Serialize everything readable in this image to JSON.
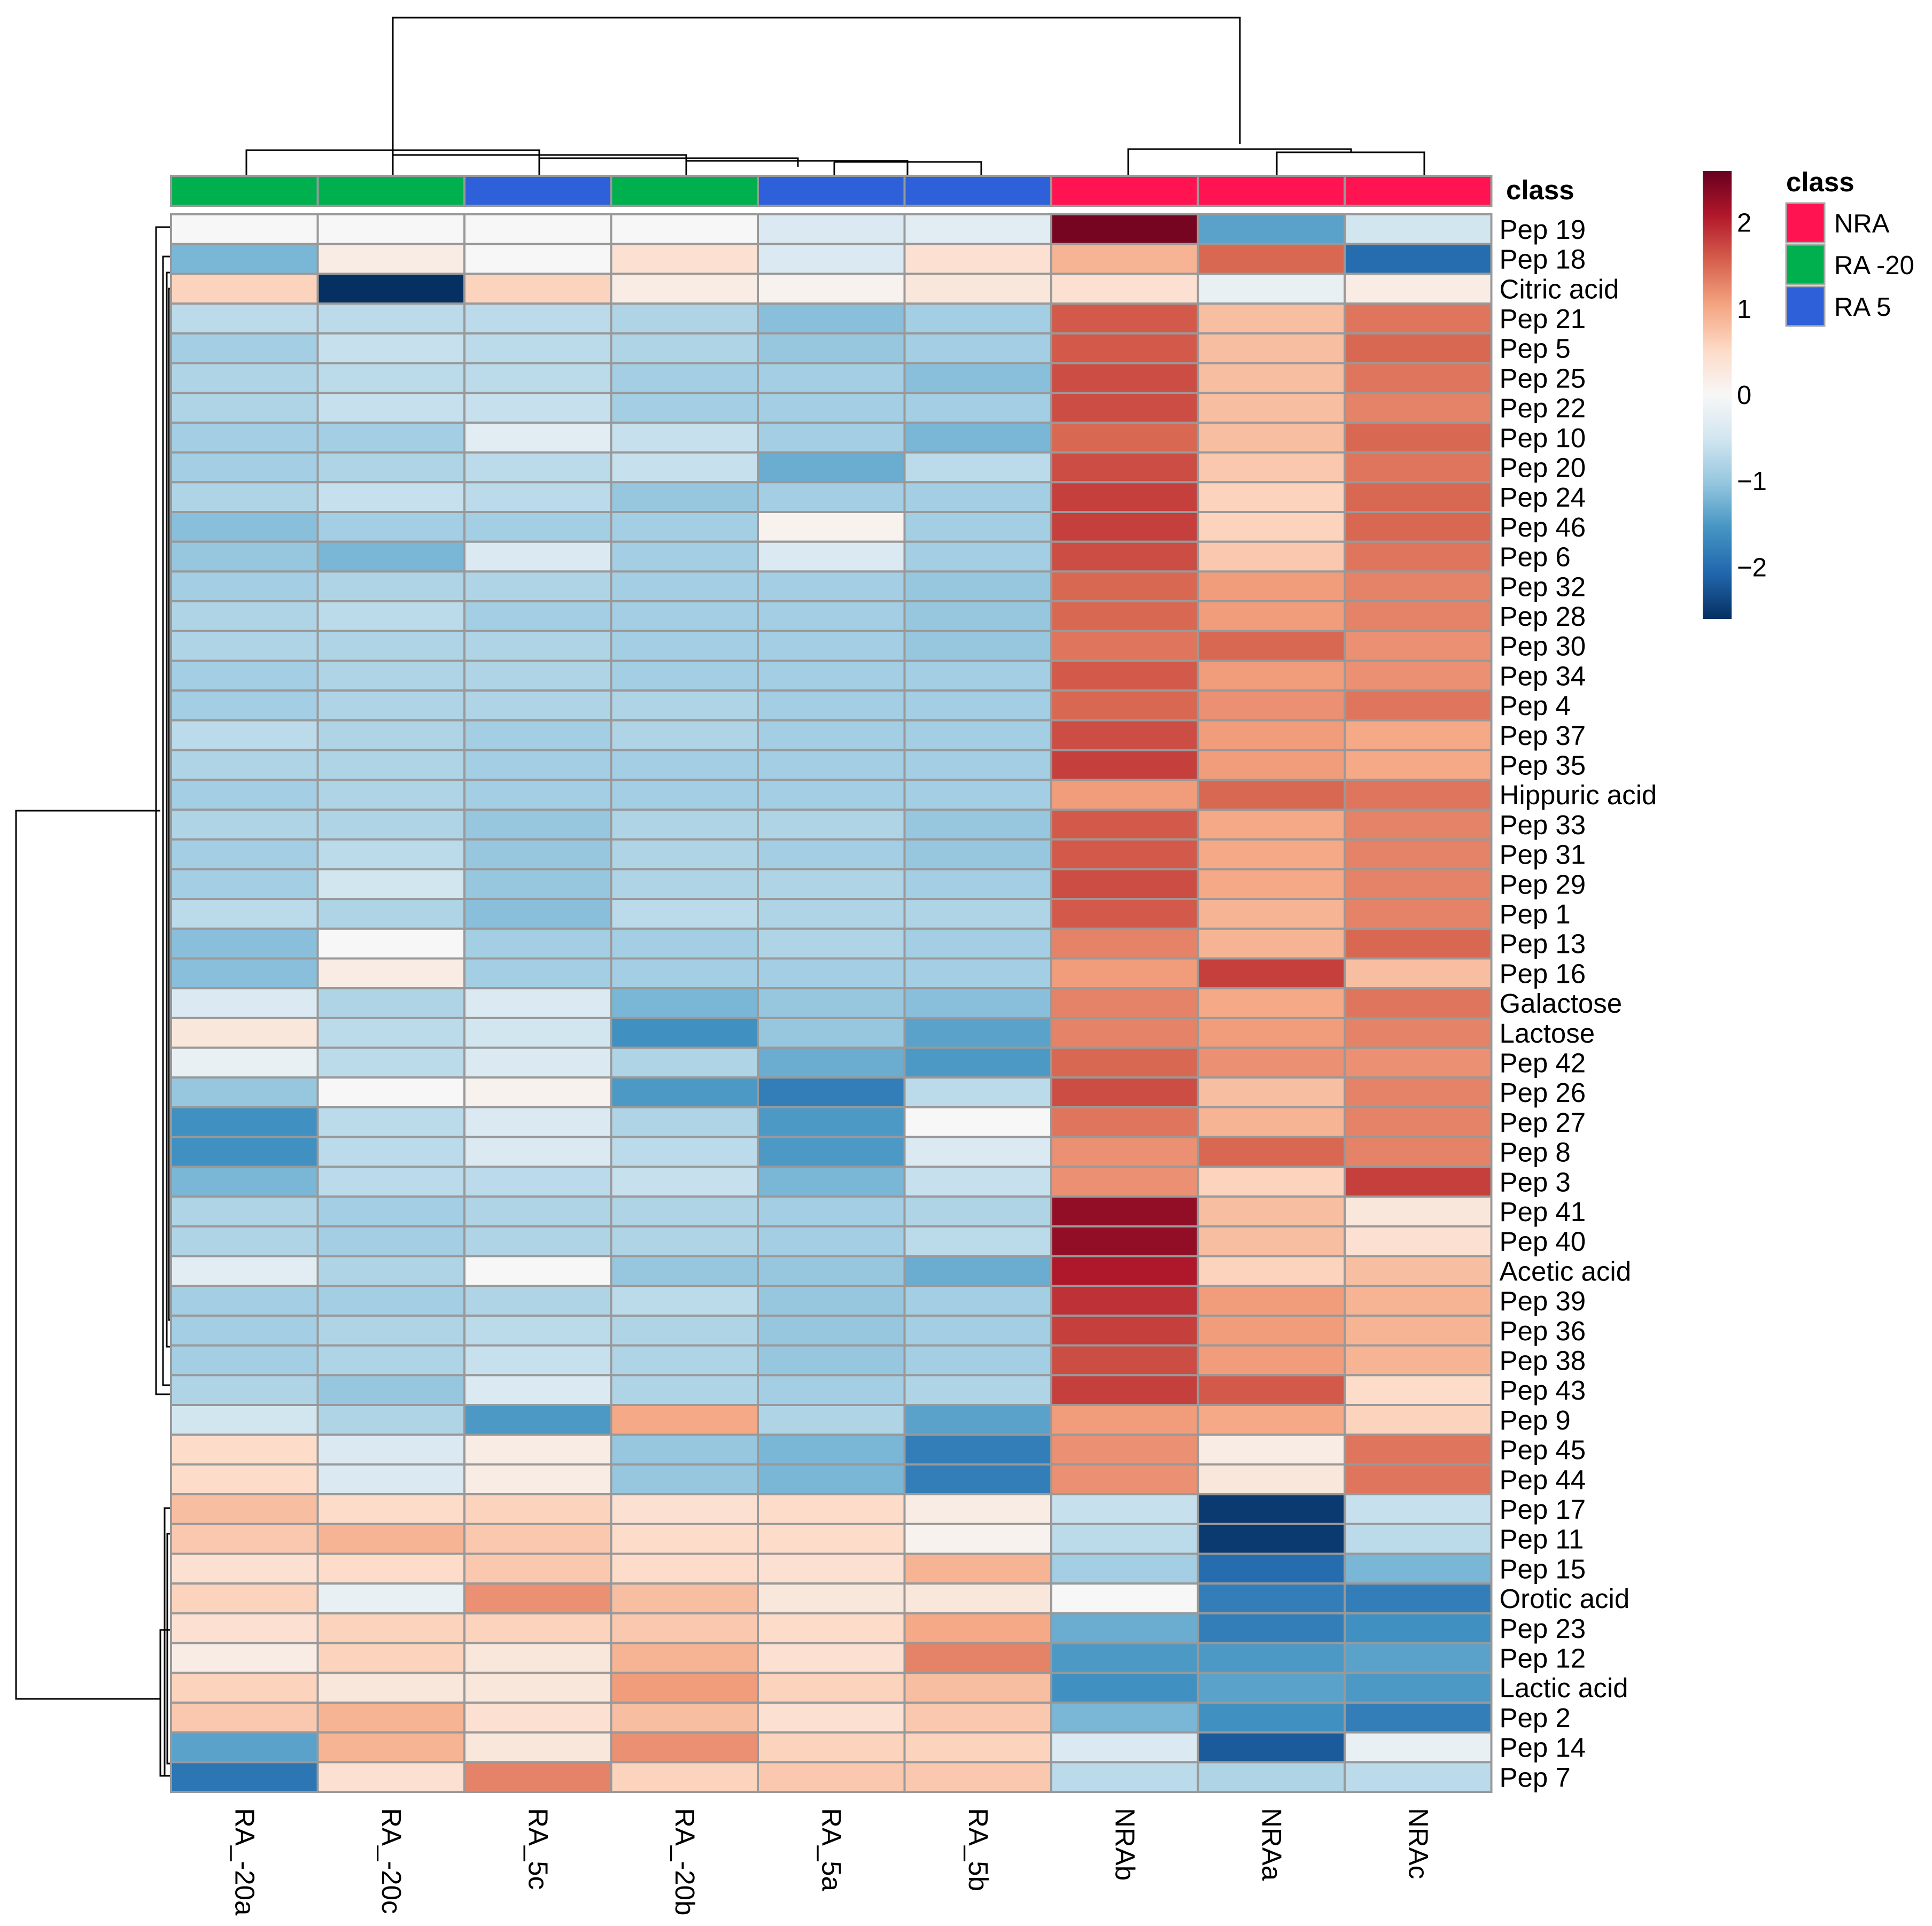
{
  "chart_data": {
    "type": "heatmap",
    "title": "",
    "columns": [
      "RA_-20a",
      "RA_-20c",
      "RA_5c",
      "RA_-20b",
      "RA_5a",
      "RA_5b",
      "NRAb",
      "NRAa",
      "NRAc"
    ],
    "column_class": [
      "RA -20",
      "RA -20",
      "RA 5",
      "RA -20",
      "RA 5",
      "RA 5",
      "NRA",
      "NRA",
      "NRA"
    ],
    "rows": [
      "Pep 19",
      "Pep 18",
      "Citric acid",
      "Pep 21",
      "Pep 5",
      "Pep 25",
      "Pep 22",
      "Pep 10",
      "Pep 20",
      "Pep 24",
      "Pep 46",
      "Pep 6",
      "Pep 32",
      "Pep 28",
      "Pep 30",
      "Pep 34",
      "Pep 4",
      "Pep 37",
      "Pep 35",
      "Hippuric acid",
      "Pep 33",
      "Pep 31",
      "Pep 29",
      "Pep 1",
      "Pep 13",
      "Pep 16",
      "Galactose",
      "Lactose",
      "Pep 42",
      "Pep 26",
      "Pep 27",
      "Pep 8",
      "Pep 3",
      "Pep 41",
      "Pep 40",
      "Acetic acid",
      "Pep 39",
      "Pep 36",
      "Pep 38",
      "Pep 43",
      "Pep 9",
      "Pep 45",
      "Pep 44",
      "Pep 17",
      "Pep 11",
      "Pep 15",
      "Orotic acid",
      "Pep 23",
      "Pep 12",
      "Lactic acid",
      "Pep 2",
      "Pep 14",
      "Pep 7"
    ],
    "values": [
      [
        0.0,
        0.0,
        0.0,
        0.0,
        -0.4,
        -0.3,
        2.5,
        -1.4,
        -0.5
      ],
      [
        -1.2,
        0.2,
        0.0,
        0.4,
        -0.4,
        0.4,
        0.9,
        1.5,
        -2.0
      ],
      [
        0.6,
        -2.6,
        0.6,
        0.2,
        0.1,
        0.3,
        0.4,
        -0.2,
        0.2
      ],
      [
        -0.7,
        -0.7,
        -0.7,
        -0.8,
        -1.1,
        -0.9,
        1.6,
        0.8,
        1.4
      ],
      [
        -0.9,
        -0.6,
        -0.7,
        -0.8,
        -1.0,
        -0.9,
        1.6,
        0.8,
        1.5
      ],
      [
        -0.8,
        -0.7,
        -0.7,
        -0.9,
        -0.9,
        -1.1,
        1.7,
        0.8,
        1.4
      ],
      [
        -0.8,
        -0.6,
        -0.6,
        -0.9,
        -0.9,
        -0.9,
        1.7,
        0.8,
        1.3
      ],
      [
        -0.9,
        -0.9,
        -0.3,
        -0.6,
        -0.9,
        -1.2,
        1.5,
        0.8,
        1.5
      ],
      [
        -0.9,
        -0.8,
        -0.7,
        -0.6,
        -1.3,
        -0.7,
        1.7,
        0.7,
        1.4
      ],
      [
        -0.8,
        -0.6,
        -0.7,
        -1.0,
        -0.9,
        -0.9,
        1.8,
        0.6,
        1.5
      ],
      [
        -1.1,
        -0.9,
        -0.9,
        -0.9,
        0.1,
        -0.9,
        1.8,
        0.6,
        1.5
      ],
      [
        -1.0,
        -1.2,
        -0.4,
        -0.9,
        -0.4,
        -0.9,
        1.7,
        0.7,
        1.4
      ],
      [
        -0.9,
        -0.8,
        -0.8,
        -0.9,
        -0.9,
        -1.0,
        1.5,
        1.1,
        1.3
      ],
      [
        -0.8,
        -0.7,
        -0.9,
        -0.9,
        -0.9,
        -1.0,
        1.5,
        1.1,
        1.3
      ],
      [
        -0.8,
        -0.8,
        -0.8,
        -0.9,
        -0.9,
        -1.0,
        1.4,
        1.5,
        1.2
      ],
      [
        -0.9,
        -0.8,
        -0.8,
        -0.9,
        -0.9,
        -0.9,
        1.6,
        1.1,
        1.2
      ],
      [
        -0.9,
        -0.8,
        -0.8,
        -0.8,
        -0.9,
        -0.9,
        1.5,
        1.2,
        1.4
      ],
      [
        -0.7,
        -0.8,
        -0.9,
        -0.8,
        -0.9,
        -0.9,
        1.7,
        1.1,
        1.0
      ],
      [
        -0.8,
        -0.8,
        -0.9,
        -0.9,
        -0.9,
        -0.9,
        1.8,
        1.1,
        1.0
      ],
      [
        -0.9,
        -0.8,
        -0.9,
        -0.9,
        -0.9,
        -0.9,
        1.1,
        1.5,
        1.4
      ],
      [
        -0.8,
        -0.8,
        -1.0,
        -0.8,
        -0.8,
        -1.0,
        1.6,
        1.0,
        1.3
      ],
      [
        -0.9,
        -0.7,
        -1.0,
        -0.8,
        -0.9,
        -1.0,
        1.6,
        1.0,
        1.3
      ],
      [
        -0.9,
        -0.5,
        -1.0,
        -0.8,
        -0.8,
        -0.9,
        1.7,
        1.0,
        1.3
      ],
      [
        -0.7,
        -0.8,
        -1.1,
        -0.7,
        -0.8,
        -0.8,
        1.6,
        0.9,
        1.3
      ],
      [
        -1.1,
        0.0,
        -0.9,
        -0.9,
        -0.8,
        -0.9,
        1.3,
        0.9,
        1.5
      ],
      [
        -1.1,
        0.2,
        -0.9,
        -0.9,
        -0.9,
        -0.9,
        1.1,
        1.8,
        0.8
      ],
      [
        -0.4,
        -0.8,
        -0.4,
        -1.2,
        -1.0,
        -1.1,
        1.3,
        1.0,
        1.4
      ],
      [
        0.3,
        -0.7,
        -0.5,
        -1.6,
        -1.0,
        -1.4,
        1.3,
        1.1,
        1.3
      ],
      [
        -0.2,
        -0.7,
        -0.4,
        -0.8,
        -1.3,
        -1.5,
        1.5,
        1.2,
        1.2
      ],
      [
        -1.0,
        0.0,
        0.1,
        -1.5,
        -1.8,
        -0.7,
        1.7,
        0.8,
        1.3
      ],
      [
        -1.6,
        -0.7,
        -0.4,
        -0.8,
        -1.5,
        0.0,
        1.4,
        0.9,
        1.3
      ],
      [
        -1.6,
        -0.7,
        -0.4,
        -0.7,
        -1.5,
        -0.4,
        1.2,
        1.5,
        1.3
      ],
      [
        -1.2,
        -0.7,
        -0.7,
        -0.6,
        -1.2,
        -0.6,
        1.2,
        0.6,
        1.8
      ],
      [
        -0.8,
        -0.9,
        -0.8,
        -0.8,
        -0.9,
        -0.8,
        2.3,
        0.8,
        0.3
      ],
      [
        -0.8,
        -0.9,
        -0.8,
        -0.8,
        -0.9,
        -0.7,
        2.3,
        0.8,
        0.4
      ],
      [
        -0.3,
        -0.8,
        0.0,
        -1.0,
        -1.0,
        -1.3,
        2.1,
        0.6,
        0.8
      ],
      [
        -0.9,
        -0.9,
        -0.8,
        -0.7,
        -1.0,
        -0.9,
        1.9,
        1.1,
        0.9
      ],
      [
        -0.9,
        -0.8,
        -0.7,
        -0.8,
        -1.0,
        -0.9,
        1.8,
        1.1,
        0.9
      ],
      [
        -0.9,
        -0.8,
        -0.6,
        -0.8,
        -1.0,
        -0.9,
        1.7,
        1.1,
        0.9
      ],
      [
        -0.8,
        -1.0,
        -0.4,
        -0.8,
        -0.9,
        -0.8,
        1.8,
        1.6,
        0.5
      ],
      [
        -0.5,
        -0.8,
        -1.5,
        1.0,
        -0.8,
        -1.4,
        1.1,
        1.0,
        0.6
      ],
      [
        0.5,
        -0.4,
        0.2,
        -1.0,
        -1.2,
        -1.8,
        1.2,
        0.2,
        1.4
      ],
      [
        0.5,
        -0.4,
        0.2,
        -1.0,
        -1.2,
        -1.8,
        1.2,
        0.3,
        1.4
      ],
      [
        0.8,
        0.5,
        0.6,
        0.4,
        0.5,
        0.2,
        -0.6,
        -2.5,
        -0.6
      ],
      [
        0.7,
        0.9,
        0.7,
        0.5,
        0.5,
        0.1,
        -0.7,
        -2.5,
        -0.7
      ],
      [
        0.4,
        0.5,
        0.7,
        0.5,
        0.4,
        0.9,
        -0.9,
        -2.0,
        -1.2
      ],
      [
        0.6,
        -0.2,
        1.2,
        0.8,
        0.3,
        0.3,
        0.0,
        -1.8,
        -1.8
      ],
      [
        0.4,
        0.6,
        0.6,
        0.7,
        0.5,
        1.0,
        -1.3,
        -1.8,
        -1.6
      ],
      [
        0.2,
        0.6,
        0.3,
        0.9,
        0.4,
        1.3,
        -1.5,
        -1.5,
        -1.4
      ],
      [
        0.6,
        0.3,
        0.3,
        1.1,
        0.6,
        0.8,
        -1.6,
        -1.4,
        -1.5
      ],
      [
        0.7,
        0.9,
        0.4,
        0.8,
        0.4,
        0.7,
        -1.2,
        -1.6,
        -1.8
      ],
      [
        -1.4,
        0.9,
        0.3,
        1.2,
        0.6,
        0.6,
        -0.4,
        -2.2,
        -0.2
      ],
      [
        -1.9,
        0.4,
        1.3,
        0.6,
        0.7,
        0.7,
        -0.7,
        -0.8,
        -0.7
      ]
    ],
    "annotation_track_title": "class",
    "legend": {
      "title": "class",
      "entries": [
        {
          "label": "NRA",
          "color": "#ff1451"
        },
        {
          "label": "RA -20",
          "color": "#00b04f"
        },
        {
          "label": "RA 5",
          "color": "#2e60d9"
        }
      ]
    },
    "colorbar": {
      "range": [
        -2.6,
        2.6
      ],
      "ticks": [
        2,
        1,
        0,
        -1,
        -2
      ],
      "tick_labels": [
        "2",
        "1",
        "0",
        "−1",
        "−2"
      ],
      "stops": [
        "#053061",
        "#2166ac",
        "#4393c3",
        "#92c5de",
        "#d1e5f0",
        "#f7f7f7",
        "#fddbc7",
        "#f4a582",
        "#d6604d",
        "#b2182b",
        "#67001f"
      ]
    }
  }
}
